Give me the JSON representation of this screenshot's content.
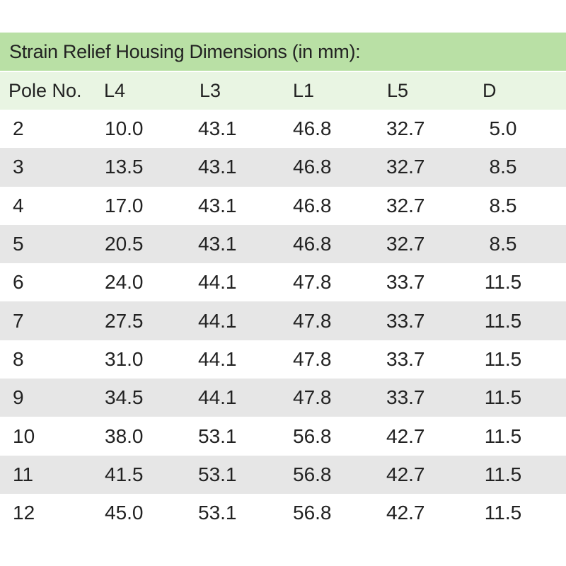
{
  "table": {
    "title": "Strain Relief Housing Dimensions (in mm):",
    "headers": [
      "Pole No.",
      "L4",
      "L3",
      "L1",
      "L5",
      "D"
    ],
    "rows": [
      [
        "2",
        "10.0",
        "43.1",
        "46.8",
        "32.7",
        "5.0"
      ],
      [
        "3",
        "13.5",
        "43.1",
        "46.8",
        "32.7",
        "8.5"
      ],
      [
        "4",
        "17.0",
        "43.1",
        "46.8",
        "32.7",
        "8.5"
      ],
      [
        "5",
        "20.5",
        "43.1",
        "46.8",
        "32.7",
        "8.5"
      ],
      [
        "6",
        "24.0",
        "44.1",
        "47.8",
        "33.7",
        "11.5"
      ],
      [
        "7",
        "27.5",
        "44.1",
        "47.8",
        "33.7",
        "11.5"
      ],
      [
        "8",
        "31.0",
        "44.1",
        "47.8",
        "33.7",
        "11.5"
      ],
      [
        "9",
        "34.5",
        "44.1",
        "47.8",
        "33.7",
        "11.5"
      ],
      [
        "10",
        "38.0",
        "53.1",
        "56.8",
        "42.7",
        "11.5"
      ],
      [
        "11",
        "41.5",
        "53.1",
        "56.8",
        "42.7",
        "11.5"
      ],
      [
        "12",
        "45.0",
        "53.1",
        "56.8",
        "42.7",
        "11.5"
      ]
    ]
  },
  "colors": {
    "title_bg": "#b9e0a5",
    "header_bg": "#e9f5e3",
    "stripe_bg": "#e6e6e6"
  }
}
